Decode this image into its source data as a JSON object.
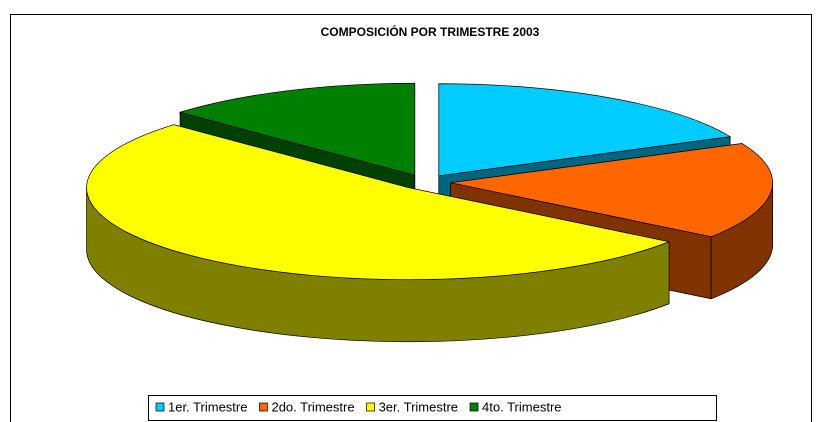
{
  "chart_data": {
    "type": "pie",
    "title": "COMPOSICIÓN POR TRIMESTRE 2003",
    "categories": [
      "1er. Trimestre",
      "2do. Trimestre",
      "3er. Trimestre",
      "4to. Trimestre"
    ],
    "values": [
      18,
      17,
      52,
      13
    ],
    "colors": [
      "#00ccff",
      "#ff6600",
      "#ffff00",
      "#008000"
    ],
    "legend": "bottom"
  }
}
